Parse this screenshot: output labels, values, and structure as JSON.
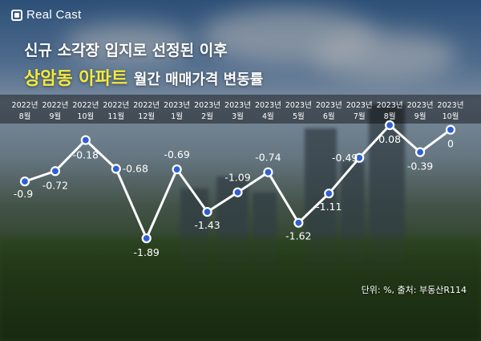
{
  "brand": {
    "logo_text": "Real Cast"
  },
  "title_line1": "신규 소각장 입지로 선정된 이후",
  "title_highlight": "상암동 아파트",
  "title_rest": "월간 매매가격 변동률",
  "footnote": "단위: %, 출처: 부동산R114",
  "colors": {
    "highlight": "#f2ea3c",
    "line": "#ffffff",
    "marker": "#2f5fd6"
  },
  "chart_data": {
    "type": "line",
    "categories": [
      [
        "2022년",
        "8월"
      ],
      [
        "2022년",
        "9월"
      ],
      [
        "2022년",
        "10월"
      ],
      [
        "2022년",
        "11월"
      ],
      [
        "2022년",
        "12월"
      ],
      [
        "2023년",
        "1월"
      ],
      [
        "2023년",
        "2월"
      ],
      [
        "2023년",
        "3월"
      ],
      [
        "2023년",
        "4월"
      ],
      [
        "2023년",
        "5월"
      ],
      [
        "2023년",
        "6월"
      ],
      [
        "2023년",
        "7월"
      ],
      [
        "2023년",
        "8월"
      ],
      [
        "2023년",
        "9월"
      ],
      [
        "2023년",
        "10월"
      ]
    ],
    "values": [
      -0.9,
      -0.72,
      -0.18,
      -0.68,
      -1.89,
      -0.69,
      -1.43,
      -1.09,
      -0.74,
      -1.62,
      -1.11,
      -0.49,
      0.08,
      -0.39,
      0
    ],
    "data_labels": [
      "-0.9",
      "-0.72",
      "-0.18",
      "-0.68",
      "-1.89",
      "-0.69",
      "-1.43",
      "-1.09",
      "-0.74",
      "-1.62",
      "-1.11",
      "-0.49",
      "0.08",
      "-0.39",
      "0"
    ],
    "ylim": [
      -2,
      0.2
    ],
    "grid": false,
    "legend": "none"
  }
}
